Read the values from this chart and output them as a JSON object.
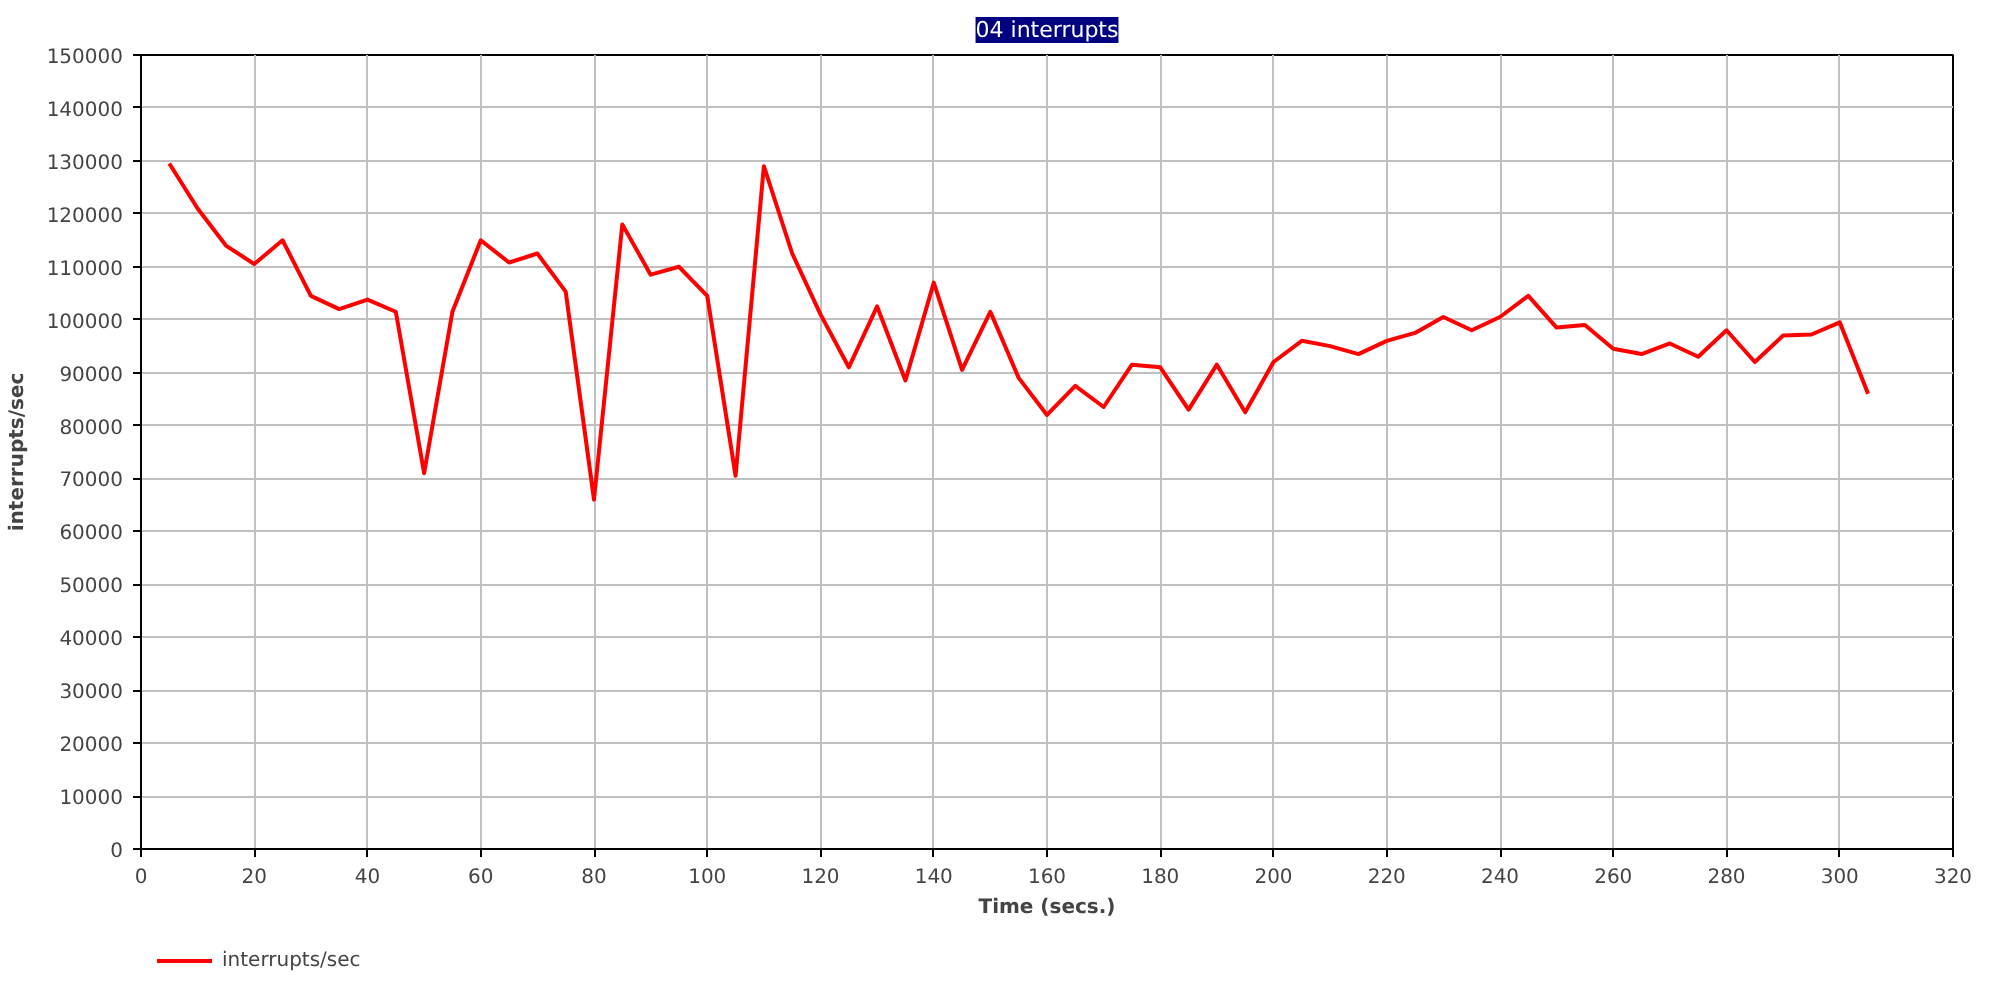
{
  "chart_data": {
    "type": "line",
    "title": "04 interrupts",
    "xlabel": "Time (secs.)",
    "ylabel": "interrupts/sec",
    "x": [
      5,
      10,
      15,
      20,
      25,
      30,
      35,
      40,
      45,
      50,
      55,
      60,
      65,
      70,
      75,
      80,
      85,
      90,
      95,
      100,
      105,
      110,
      115,
      120,
      125,
      130,
      135,
      140,
      145,
      150,
      155,
      160,
      165,
      170,
      175,
      180,
      185,
      190,
      195,
      200,
      205,
      210,
      215,
      220,
      225,
      230,
      235,
      240,
      245,
      250,
      255,
      260,
      265,
      270,
      275,
      280,
      285,
      290,
      295,
      300,
      305
    ],
    "series": [
      {
        "name": "interrupts/sec",
        "color": "#ff0000",
        "values": [
          129500,
          121000,
          114000,
          110500,
          115000,
          104500,
          102000,
          103800,
          101500,
          71000,
          101500,
          115000,
          110800,
          112500,
          105300,
          66000,
          118000,
          108500,
          110000,
          104500,
          70500,
          129000,
          112500,
          101000,
          91000,
          102500,
          88500,
          107000,
          90500,
          101500,
          89000,
          82000,
          87500,
          83500,
          91500,
          91000,
          83000,
          91500,
          82500,
          92000,
          96000,
          95000,
          93500,
          96000,
          97500,
          100500,
          98000,
          100500,
          104500,
          98500,
          99000,
          94500,
          93500,
          95500,
          93000,
          98000,
          92000,
          97000,
          97200,
          99500,
          86000
        ]
      }
    ],
    "xlim": [
      0,
      320
    ],
    "xticks": [
      0,
      20,
      40,
      60,
      80,
      100,
      120,
      140,
      160,
      180,
      200,
      220,
      240,
      260,
      280,
      300,
      320
    ],
    "ylim": [
      0,
      150000
    ],
    "yticks": [
      0,
      10000,
      20000,
      30000,
      40000,
      50000,
      60000,
      70000,
      80000,
      90000,
      100000,
      110000,
      120000,
      130000,
      140000,
      150000
    ],
    "grid": true,
    "legend": "bottom left",
    "marker": "none",
    "line_style": "solid"
  }
}
